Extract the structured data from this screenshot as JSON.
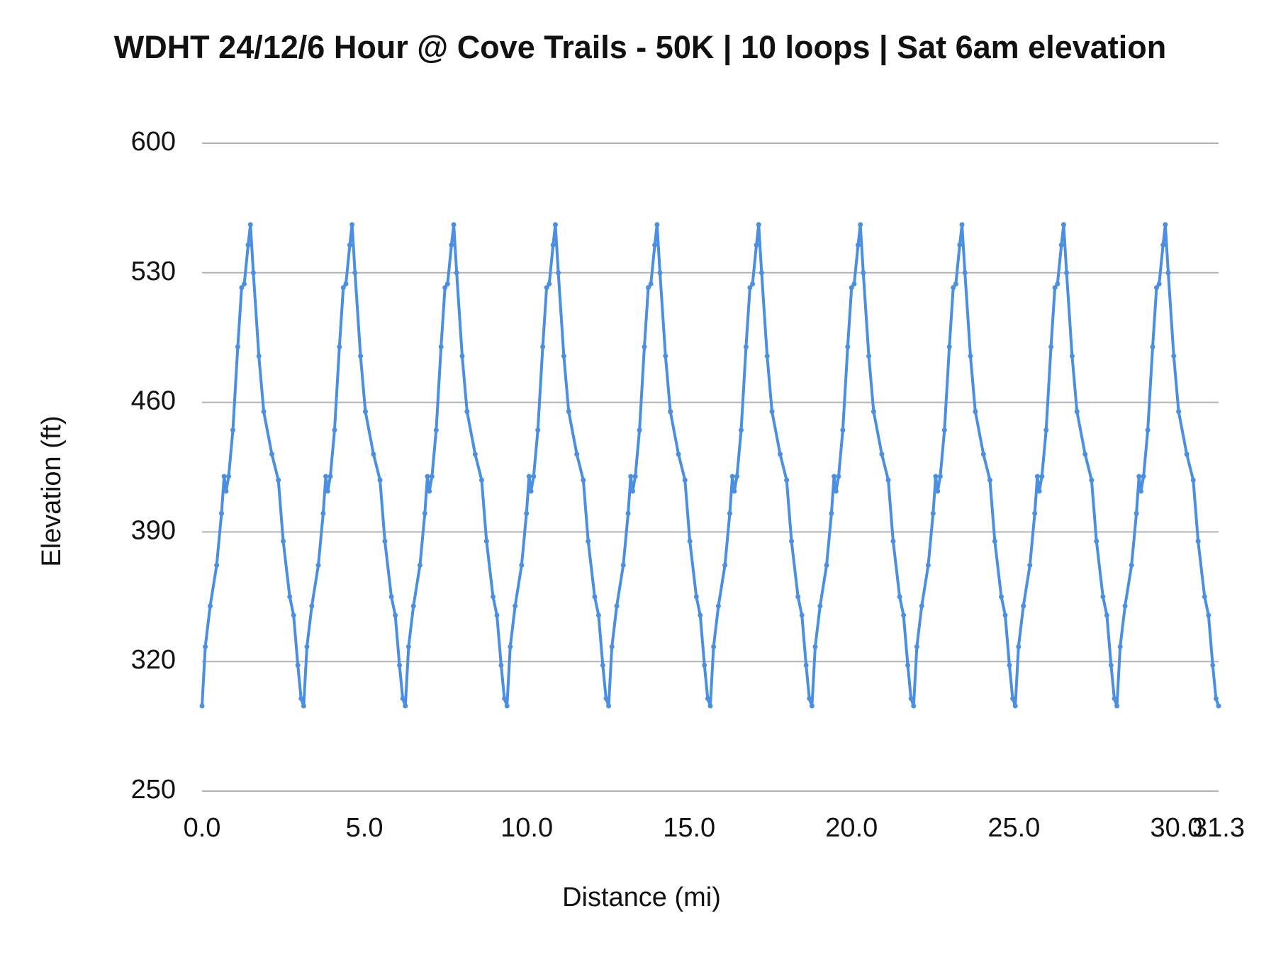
{
  "chart_data": {
    "type": "line",
    "title": "WDHT 24/12/6 Hour @ Cove Trails - 50K | 10 loops | Sat 6am elevation",
    "x_label": "Distance (mi)",
    "y_label": "Elevation (ft)",
    "color": "#4a8fe2",
    "markers": true,
    "grid": true,
    "xlim": [
      0,
      31.3
    ],
    "ylim": [
      250,
      600
    ],
    "xticks": [
      {
        "value": 0,
        "label": "0.0"
      },
      {
        "value": 5,
        "label": "5.0"
      },
      {
        "value": 10,
        "label": "10.0"
      },
      {
        "value": 15,
        "label": "15.0"
      },
      {
        "value": 20,
        "label": "20.0"
      },
      {
        "value": 25,
        "label": "25.0"
      },
      {
        "value": 30,
        "label": "30.0"
      },
      31.3
    ],
    "yticks": [
      250,
      320,
      390,
      460,
      530,
      600
    ],
    "x": [
      0,
      0.1,
      0.25,
      0.45,
      0.6,
      0.68,
      0.74,
      0.82,
      0.95,
      1.1,
      1.22,
      1.3,
      1.42,
      1.49,
      1.58,
      1.75,
      1.9,
      2.15,
      2.35,
      2.5,
      2.7,
      2.82,
      2.95,
      3.05,
      3.13,
      3.23,
      3.38,
      3.58,
      3.73,
      3.81,
      3.87,
      3.95,
      4.08,
      4.23,
      4.35,
      4.43,
      4.55,
      4.62,
      4.71,
      4.88,
      5.03,
      5.28,
      5.48,
      5.63,
      5.83,
      5.95,
      6.08,
      6.18,
      6.26,
      6.36,
      6.51,
      6.71,
      6.86,
      6.94,
      7.0,
      7.08,
      7.21,
      7.36,
      7.48,
      7.56,
      7.68,
      7.75,
      7.84,
      8.01,
      8.16,
      8.41,
      8.61,
      8.76,
      8.96,
      9.08,
      9.21,
      9.31,
      9.39,
      9.49,
      9.64,
      9.84,
      9.99,
      10.07,
      10.13,
      10.21,
      10.34,
      10.49,
      10.61,
      10.69,
      10.81,
      10.88,
      10.97,
      11.14,
      11.29,
      11.54,
      11.74,
      11.89,
      12.09,
      12.21,
      12.34,
      12.44,
      12.52,
      12.62,
      12.77,
      12.97,
      13.12,
      13.2,
      13.26,
      13.34,
      13.47,
      13.62,
      13.74,
      13.82,
      13.94,
      14.01,
      14.1,
      14.27,
      14.42,
      14.67,
      14.87,
      15.02,
      15.22,
      15.34,
      15.47,
      15.57,
      15.65,
      15.75,
      15.9,
      16.1,
      16.25,
      16.33,
      16.39,
      16.47,
      16.6,
      16.75,
      16.87,
      16.95,
      17.07,
      17.14,
      17.23,
      17.4,
      17.55,
      17.8,
      18.0,
      18.15,
      18.35,
      18.47,
      18.6,
      18.7,
      18.78,
      18.88,
      19.03,
      19.23,
      19.38,
      19.46,
      19.52,
      19.6,
      19.73,
      19.88,
      20.0,
      20.08,
      20.2,
      20.27,
      20.36,
      20.53,
      20.68,
      20.93,
      21.13,
      21.28,
      21.48,
      21.6,
      21.73,
      21.83,
      21.91,
      22.01,
      22.16,
      22.36,
      22.51,
      22.59,
      22.65,
      22.73,
      22.86,
      23.01,
      23.13,
      23.21,
      23.33,
      23.4,
      23.49,
      23.66,
      23.81,
      24.06,
      24.26,
      24.41,
      24.61,
      24.73,
      24.86,
      24.96,
      25.04,
      25.14,
      25.29,
      25.49,
      25.64,
      25.72,
      25.78,
      25.86,
      25.99,
      26.14,
      26.26,
      26.34,
      26.46,
      26.53,
      26.62,
      26.79,
      26.94,
      27.19,
      27.39,
      27.54,
      27.74,
      27.86,
      27.99,
      28.09,
      28.17,
      28.27,
      28.42,
      28.62,
      28.77,
      28.85,
      28.91,
      28.99,
      29.12,
      29.27,
      29.39,
      29.47,
      29.59,
      29.66,
      29.75,
      29.92,
      30.07,
      30.32,
      30.52,
      30.67,
      30.87,
      30.99,
      31.12,
      31.22,
      31.3
    ],
    "values": [
      296,
      328,
      350,
      372,
      400,
      420,
      412,
      420,
      445,
      490,
      522,
      524,
      545,
      556,
      530,
      485,
      455,
      432,
      418,
      385,
      355,
      345,
      318,
      300,
      296,
      328,
      350,
      372,
      400,
      420,
      412,
      420,
      445,
      490,
      522,
      524,
      545,
      556,
      530,
      485,
      455,
      432,
      418,
      385,
      355,
      345,
      318,
      300,
      296,
      328,
      350,
      372,
      400,
      420,
      412,
      420,
      445,
      490,
      522,
      524,
      545,
      556,
      530,
      485,
      455,
      432,
      418,
      385,
      355,
      345,
      318,
      300,
      296,
      328,
      350,
      372,
      400,
      420,
      412,
      420,
      445,
      490,
      522,
      524,
      545,
      556,
      530,
      485,
      455,
      432,
      418,
      385,
      355,
      345,
      318,
      300,
      296,
      328,
      350,
      372,
      400,
      420,
      412,
      420,
      445,
      490,
      522,
      524,
      545,
      556,
      530,
      485,
      455,
      432,
      418,
      385,
      355,
      345,
      318,
      300,
      296,
      328,
      350,
      372,
      400,
      420,
      412,
      420,
      445,
      490,
      522,
      524,
      545,
      556,
      530,
      485,
      455,
      432,
      418,
      385,
      355,
      345,
      318,
      300,
      296,
      328,
      350,
      372,
      400,
      420,
      412,
      420,
      445,
      490,
      522,
      524,
      545,
      556,
      530,
      485,
      455,
      432,
      418,
      385,
      355,
      345,
      318,
      300,
      296,
      328,
      350,
      372,
      400,
      420,
      412,
      420,
      445,
      490,
      522,
      524,
      545,
      556,
      530,
      485,
      455,
      432,
      418,
      385,
      355,
      345,
      318,
      300,
      296,
      328,
      350,
      372,
      400,
      420,
      412,
      420,
      445,
      490,
      522,
      524,
      545,
      556,
      530,
      485,
      455,
      432,
      418,
      385,
      355,
      345,
      318,
      300,
      296,
      328,
      350,
      372,
      400,
      420,
      412,
      420,
      445,
      490,
      522,
      524,
      545,
      556,
      530,
      485,
      455,
      432,
      418,
      385,
      355,
      345,
      318,
      300,
      296
    ]
  }
}
